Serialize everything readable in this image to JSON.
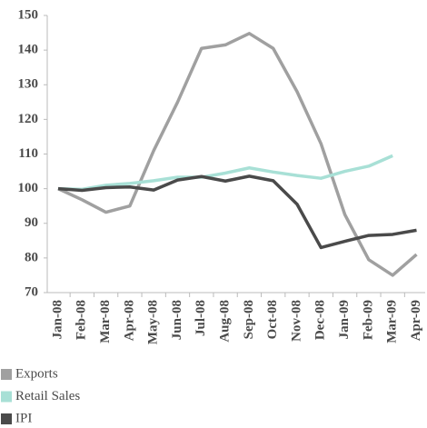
{
  "chart_data": {
    "type": "line",
    "categories": [
      "Jan-08",
      "Feb-08",
      "Mar-08",
      "Apr-08",
      "May-08",
      "Jun-08",
      "Jul-08",
      "Aug-08",
      "Sep-08",
      "Oct-08",
      "Nov-08",
      "Dec-08",
      "Jan-09",
      "Feb-09",
      "Mar-09",
      "Apr-09"
    ],
    "series": [
      {
        "name": "Exports",
        "color": "#a0a0a0",
        "values": [
          100,
          96.8,
          93.2,
          95,
          111,
          125,
          140.5,
          141.5,
          144.8,
          140.5,
          128,
          113,
          92.5,
          79.5,
          75,
          81
        ]
      },
      {
        "name": "Retail Sales",
        "color": "#a8e0d6",
        "values": [
          100,
          99.8,
          101,
          101.5,
          102.3,
          103.3,
          103.3,
          104.5,
          106,
          104.8,
          103.8,
          103,
          105,
          106.5,
          109.5,
          null
        ]
      },
      {
        "name": "IPI",
        "color": "#4a4a4a",
        "values": [
          100,
          99.5,
          100.3,
          100.5,
          99.6,
          102.5,
          103.5,
          102.2,
          103.6,
          102.3,
          95.5,
          83,
          84.8,
          86.5,
          86.8,
          88
        ]
      }
    ],
    "ylim": [
      70,
      150
    ],
    "yticks": [
      70,
      80,
      90,
      100,
      110,
      120,
      130,
      140,
      150
    ],
    "grid": false,
    "legend": "bottom-left"
  }
}
